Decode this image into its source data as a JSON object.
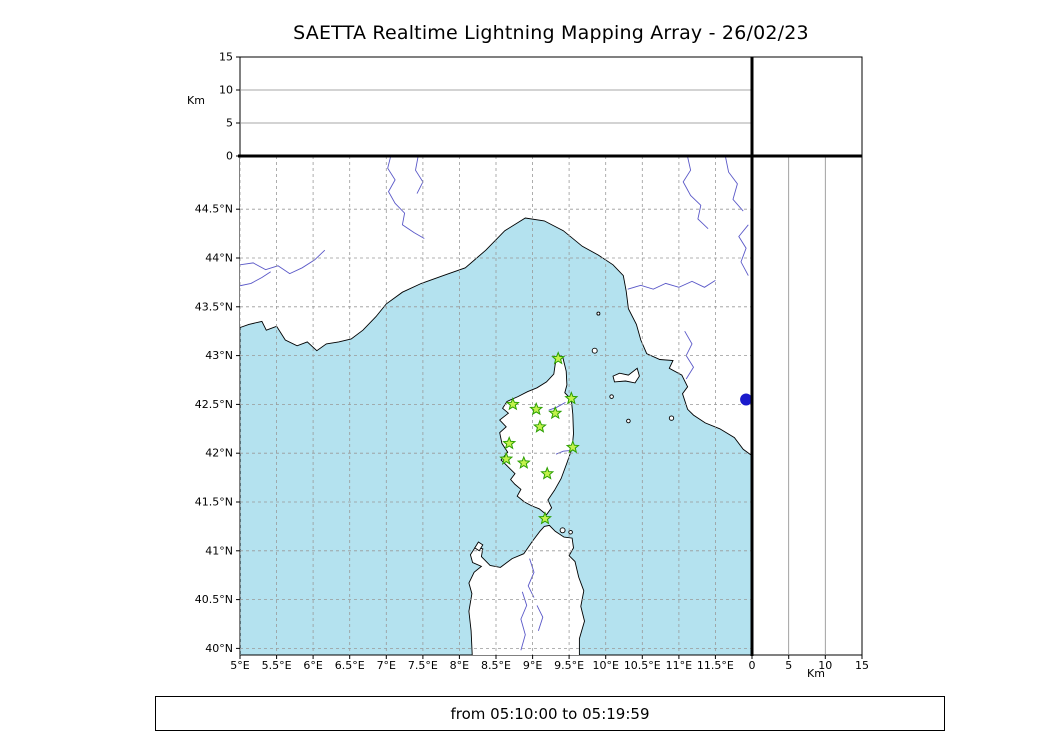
{
  "title": "SAETTA Realtime Lightning Mapping Array - 26/02/23",
  "footer": {
    "text": "from 05:10:00 to 05:19:59"
  },
  "alt_axis": {
    "label": "Km",
    "ticks": [
      {
        "label": "0",
        "value": 0
      },
      {
        "label": "5",
        "value": 5
      },
      {
        "label": "10",
        "value": 10
      },
      {
        "label": "15",
        "value": 15
      }
    ],
    "gridlines": [
      5,
      10
    ],
    "max": 15
  },
  "colors": {
    "sea": "#b4e2ef",
    "land": "#ffffff",
    "coast": "#000000",
    "river": "#5b59c8",
    "grid": "#999999",
    "panel_grid": "#8a8a8a",
    "station_fill": "#c3f24c",
    "station_edge": "#2b9f00",
    "event": "#1a1acc"
  },
  "map": {
    "lon_ticks": [
      {
        "label": "5°E",
        "value": 5
      },
      {
        "label": "5.5°E",
        "value": 5.5
      },
      {
        "label": "6°E",
        "value": 6
      },
      {
        "label": "6.5°E",
        "value": 6.5
      },
      {
        "label": "7°E",
        "value": 7
      },
      {
        "label": "7.5°E",
        "value": 7.5
      },
      {
        "label": "8°E",
        "value": 8
      },
      {
        "label": "8.5°E",
        "value": 8.5
      },
      {
        "label": "9°E",
        "value": 9
      },
      {
        "label": "9.5°E",
        "value": 9.5
      },
      {
        "label": "10°E",
        "value": 10
      },
      {
        "label": "10.5°E",
        "value": 10.5
      },
      {
        "label": "11°E",
        "value": 11
      },
      {
        "label": "11.5°E",
        "value": 11.5
      }
    ],
    "lat_ticks": [
      {
        "label": "44.5°N",
        "value": 44.5
      },
      {
        "label": "44°N",
        "value": 44
      },
      {
        "label": "43.5°N",
        "value": 43.5
      },
      {
        "label": "43°N",
        "value": 43
      },
      {
        "label": "42.5°N",
        "value": 42.5
      },
      {
        "label": "42°N",
        "value": 42
      },
      {
        "label": "41.5°N",
        "value": 41.5
      },
      {
        "label": "41°N",
        "value": 41
      },
      {
        "label": "40.5°N",
        "value": 40.5
      },
      {
        "label": "40°N",
        "value": 40
      }
    ],
    "stations": [
      {
        "lon": 9.35,
        "lat": 42.97
      },
      {
        "lon": 9.53,
        "lat": 42.56
      },
      {
        "lon": 8.73,
        "lat": 42.5
      },
      {
        "lon": 9.05,
        "lat": 42.45
      },
      {
        "lon": 9.31,
        "lat": 42.41
      },
      {
        "lon": 9.1,
        "lat": 42.27
      },
      {
        "lon": 8.68,
        "lat": 42.1
      },
      {
        "lon": 9.55,
        "lat": 42.06
      },
      {
        "lon": 8.64,
        "lat": 41.94
      },
      {
        "lon": 8.88,
        "lat": 41.9
      },
      {
        "lon": 9.2,
        "lat": 41.79
      },
      {
        "lon": 9.17,
        "lat": 41.33
      }
    ],
    "event_dot": {
      "lon": 11.92,
      "lat": 42.55
    }
  }
}
